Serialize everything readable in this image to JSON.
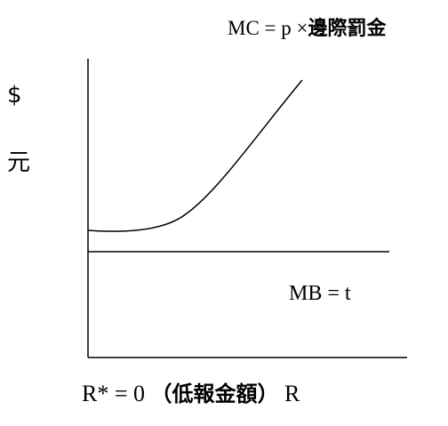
{
  "diagram": {
    "mc_curve_label": {
      "prefix": "MC = p ×",
      "cjk": "邊際罰金"
    },
    "y_axis": {
      "symbol": "$",
      "unit": "元"
    },
    "mb_label": "MB  = t",
    "x_axis": {
      "r_star": "R* = 0",
      "paren_open": "（",
      "cjk": "低報金額",
      "paren_close": "）",
      "var": "R"
    },
    "colors": {
      "line": "#000000",
      "background": "#ffffff"
    }
  }
}
